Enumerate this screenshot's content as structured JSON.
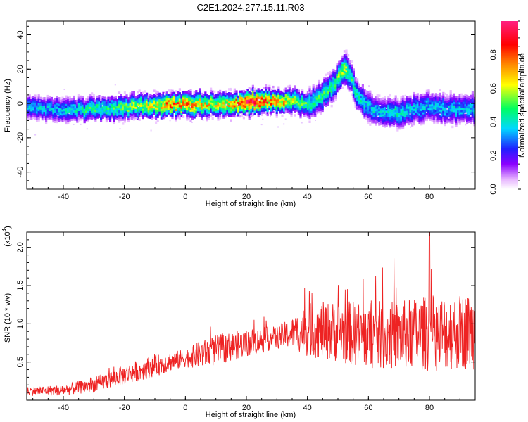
{
  "title": "C2E1.2024.277.15.11.R03",
  "chart_data": [
    {
      "type": "heatmap",
      "xlabel": "Height of straight line (km)",
      "ylabel": "Frequency (Hz)",
      "xlim": [
        -52,
        95
      ],
      "ylim": [
        -50,
        48
      ],
      "xticks": [
        -40,
        -20,
        0,
        20,
        40,
        60,
        80
      ],
      "yticks": [
        -40,
        -20,
        0,
        20,
        40
      ],
      "colorbar": {
        "label": "Normalized spectral amplitude",
        "range": [
          0,
          1
        ],
        "ticks": [
          "0.0",
          "0.2",
          "0.4",
          "0.6",
          "0.8"
        ],
        "colors": [
          "#ffffff",
          "#e6b3ff",
          "#8a00ff",
          "#2020ff",
          "#00d8ff",
          "#00ff60",
          "#ffff00",
          "#ff8000",
          "#ff0000",
          "#ff2080"
        ]
      },
      "ridge": {
        "x": [
          -52,
          -45,
          -40,
          -35,
          -30,
          -25,
          -20,
          -15,
          -10,
          -5,
          0,
          5,
          10,
          15,
          20,
          25,
          30,
          35,
          40,
          45,
          48,
          50,
          52,
          54,
          56,
          58,
          60,
          65,
          70,
          75,
          80,
          85,
          90,
          95
        ],
        "y": [
          -3,
          -4,
          -5,
          -4,
          -4,
          -3,
          -3,
          -2,
          -2,
          -1,
          -1,
          -1,
          -1,
          -1,
          0,
          1,
          1,
          1,
          -2,
          5,
          10,
          15,
          19,
          14,
          5,
          0,
          -3,
          -5,
          -6,
          -4,
          -2,
          -4,
          -3,
          -4
        ],
        "strength": [
          0.35,
          0.35,
          0.35,
          0.4,
          0.45,
          0.45,
          0.5,
          0.55,
          0.6,
          0.75,
          0.7,
          0.65,
          0.6,
          0.65,
          0.95,
          0.75,
          0.7,
          0.55,
          0.45,
          0.45,
          0.45,
          0.5,
          0.55,
          0.45,
          0.4,
          0.4,
          0.35,
          0.35,
          0.4,
          0.35,
          0.35,
          0.35,
          0.35,
          0.35
        ]
      }
    },
    {
      "type": "line",
      "xlabel": "Height of straight line (km)",
      "ylabel": "SNR (10 * v/v)",
      "yscale_label": "(x10",
      "yscale_exp": "4",
      "xlim": [
        -52,
        95
      ],
      "ylim": [
        0,
        2.2
      ],
      "xticks": [
        -40,
        -20,
        0,
        20,
        40,
        60,
        80
      ],
      "yticks": [
        "0.5",
        "1.0",
        "1.5",
        "2.0"
      ],
      "color": "#ee2222",
      "envelope": {
        "x": [
          -52,
          -40,
          -30,
          -20,
          -10,
          0,
          5,
          10,
          20,
          30,
          35,
          40,
          50,
          60,
          70,
          80,
          90,
          95
        ],
        "y": [
          0.12,
          0.13,
          0.2,
          0.33,
          0.45,
          0.55,
          0.6,
          0.65,
          0.75,
          0.82,
          0.88,
          0.92,
          0.9,
          0.85,
          0.85,
          0.88,
          0.9,
          0.9
        ],
        "noise": [
          0.06,
          0.07,
          0.1,
          0.13,
          0.14,
          0.12,
          0.18,
          0.2,
          0.18,
          0.15,
          0.2,
          0.35,
          0.4,
          0.45,
          0.45,
          0.5,
          0.5,
          0.5
        ]
      },
      "peak": {
        "x": 80,
        "y": 2.2
      }
    }
  ]
}
